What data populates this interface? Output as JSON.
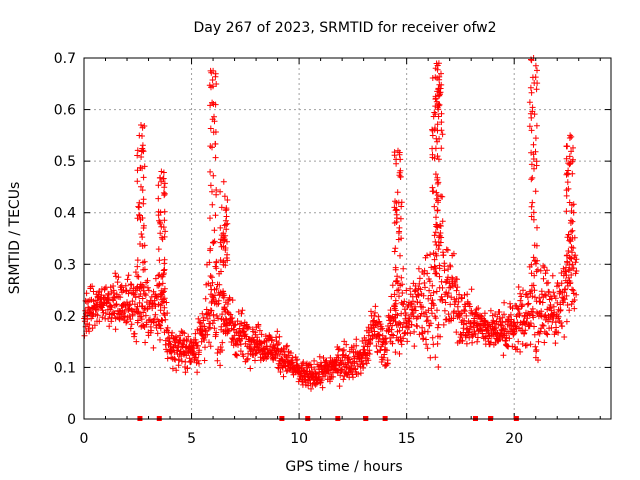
{
  "chart_data": {
    "type": "scatter",
    "title": "Day 267 of 2023, SRMTID for receiver ofw2",
    "xlabel": "GPS time / hours",
    "ylabel": "SRMTID / TECUs",
    "xlim": [
      0,
      24.5
    ],
    "ylim": [
      0,
      0.7
    ],
    "xticks": [
      0,
      5,
      10,
      15,
      20
    ],
    "yticks": [
      0,
      0.1,
      0.2,
      0.3,
      0.4,
      0.5,
      0.6,
      0.7
    ],
    "grid": true,
    "marker": "+",
    "color": "#ff0000",
    "baseline_mark_hours": [
      2.6,
      3.5,
      9.2,
      10.4,
      11.8,
      13.1,
      14.0,
      18.2,
      18.9,
      20.1
    ],
    "profile": {
      "hours": [
        0,
        1,
        2,
        2.5,
        3,
        3.6,
        4,
        5,
        5.5,
        6,
        6.5,
        7,
        8,
        9,
        10,
        10.5,
        11,
        12,
        13,
        13.5,
        14,
        14.5,
        15,
        15.5,
        16,
        16.5,
        17,
        17.5,
        18,
        19,
        20,
        20.5,
        21,
        21.5,
        22,
        22.5,
        22.9
      ],
      "median": [
        0.2,
        0.23,
        0.22,
        0.24,
        0.2,
        0.22,
        0.14,
        0.13,
        0.17,
        0.21,
        0.2,
        0.17,
        0.15,
        0.13,
        0.09,
        0.08,
        0.09,
        0.11,
        0.12,
        0.18,
        0.14,
        0.2,
        0.2,
        0.22,
        0.23,
        0.27,
        0.25,
        0.2,
        0.19,
        0.17,
        0.18,
        0.2,
        0.22,
        0.22,
        0.2,
        0.26,
        0.3
      ],
      "spread": [
        0.05,
        0.05,
        0.06,
        0.1,
        0.07,
        0.1,
        0.04,
        0.04,
        0.08,
        0.12,
        0.09,
        0.06,
        0.04,
        0.04,
        0.03,
        0.03,
        0.03,
        0.04,
        0.04,
        0.06,
        0.05,
        0.1,
        0.07,
        0.08,
        0.14,
        0.15,
        0.1,
        0.07,
        0.06,
        0.04,
        0.06,
        0.08,
        0.14,
        0.06,
        0.07,
        0.1,
        0.09
      ]
    },
    "peaks": [
      {
        "hours": 2.65,
        "value": 0.57
      },
      {
        "hours": 3.6,
        "value": 0.48
      },
      {
        "hours": 6.0,
        "value": 0.675
      },
      {
        "hours": 6.5,
        "value": 0.46
      },
      {
        "hours": 14.6,
        "value": 0.52
      },
      {
        "hours": 16.35,
        "value": 0.68
      },
      {
        "hours": 16.5,
        "value": 0.69
      },
      {
        "hours": 20.9,
        "value": 0.7
      },
      {
        "hours": 22.6,
        "value": 0.55
      }
    ]
  }
}
